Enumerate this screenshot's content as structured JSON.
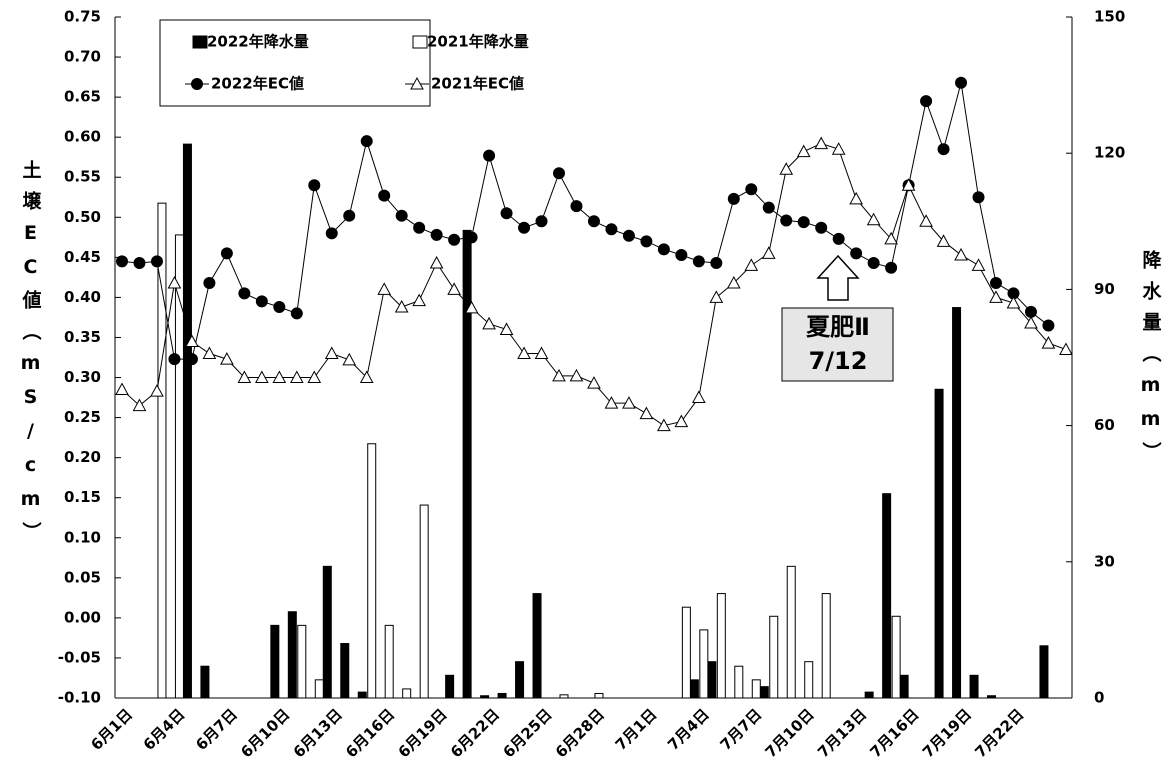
{
  "chart_data": {
    "type": "combo",
    "y_label": "土壌EC値（mS/cm）",
    "y2_label": "降水量（mm）",
    "categories": [
      "6月1日",
      null,
      null,
      "6月4日",
      null,
      null,
      "6月7日",
      null,
      null,
      "6月10日",
      null,
      null,
      "6月13日",
      null,
      null,
      "6月16日",
      null,
      null,
      "6月19日",
      null,
      null,
      "6月22日",
      null,
      null,
      "6月25日",
      null,
      null,
      "6月28日",
      null,
      null,
      "7月1日",
      null,
      null,
      "7月4日",
      null,
      null,
      "7月7日",
      null,
      null,
      "7月10日",
      null,
      null,
      "7月13日",
      null,
      null,
      "7月16日",
      null,
      null,
      "7月19日",
      null,
      null,
      "7月22日",
      null,
      null,
      null
    ],
    "ylim": [
      -0.1,
      0.75
    ],
    "yticks": [
      {
        "value": -0.1,
        "label": "-0.10"
      },
      -0.05,
      {
        "value": 0.0,
        "label": "0.00"
      },
      0.05,
      {
        "value": 0.1,
        "label": "0.10"
      },
      0.15,
      {
        "value": 0.2,
        "label": "0.20"
      },
      0.25,
      {
        "value": 0.3,
        "label": "0.30"
      },
      0.35,
      {
        "value": 0.4,
        "label": "0.40"
      },
      0.45,
      {
        "value": 0.5,
        "label": "0.50"
      },
      0.55,
      {
        "value": 0.6,
        "label": "0.60"
      },
      0.65,
      {
        "value": 0.7,
        "label": "0.70"
      },
      0.75
    ],
    "y2lim": [
      0,
      150
    ],
    "y2ticks": [
      0,
      30,
      60,
      90,
      120,
      150
    ],
    "series": [
      {
        "name": "2022年降水量",
        "type": "bar",
        "axis": "y2",
        "color": "#000000",
        "values": [
          0,
          0,
          0,
          122,
          7,
          0,
          0,
          0,
          16,
          19,
          0,
          29,
          12,
          1.3,
          0,
          0,
          0,
          0,
          5,
          103,
          0.5,
          1,
          8,
          23,
          0,
          0,
          0,
          0,
          0,
          0,
          0,
          0,
          4,
          8,
          0,
          0,
          2.5,
          0,
          0,
          0,
          0,
          0,
          1.3,
          45,
          5,
          0,
          68,
          86,
          5,
          0.5,
          0,
          0,
          11.5,
          0,
          0
        ]
      },
      {
        "name": "2021年降水量",
        "type": "bar",
        "axis": "y2",
        "color": "#ffffff",
        "values": [
          0,
          0,
          109,
          102,
          0,
          0,
          0,
          0,
          0,
          0,
          16,
          4,
          0,
          0,
          56,
          16,
          2,
          42.5,
          0,
          0,
          0,
          0,
          0,
          0,
          0,
          0.7,
          0,
          1,
          0,
          0,
          0,
          0,
          20,
          15,
          23,
          7,
          4,
          18,
          29,
          8,
          23,
          0,
          0,
          0,
          18,
          0,
          0,
          0,
          0,
          0,
          0,
          0,
          0,
          0,
          0
        ]
      },
      {
        "name": "2022年EC値",
        "type": "line",
        "marker": "circle",
        "color": "#000000",
        "values": [
          0.445,
          0.443,
          0.445,
          0.323,
          0.323,
          0.418,
          0.455,
          0.405,
          0.395,
          0.388,
          0.38,
          0.54,
          0.48,
          0.502,
          0.595,
          0.527,
          0.502,
          0.487,
          0.478,
          0.472,
          0.475,
          0.577,
          0.505,
          0.487,
          0.495,
          0.555,
          0.514,
          0.495,
          0.485,
          0.477,
          0.47,
          0.46,
          0.453,
          0.445,
          0.443,
          0.523,
          0.535,
          0.512,
          0.496,
          0.494,
          0.487,
          0.473,
          0.455,
          0.443,
          0.437,
          0.54,
          0.645,
          0.585,
          0.668,
          0.525,
          0.418,
          0.405,
          0.382,
          0.365,
          null
        ]
      },
      {
        "name": "2021年EC値",
        "type": "line",
        "marker": "triangle",
        "color": "#ffffff",
        "values": [
          0.285,
          0.265,
          0.283,
          0.418,
          0.345,
          0.33,
          0.323,
          0.3,
          0.3,
          0.3,
          0.3,
          0.3,
          0.33,
          0.322,
          0.3,
          0.41,
          0.388,
          0.396,
          0.443,
          0.41,
          0.387,
          0.367,
          0.36,
          0.33,
          0.33,
          0.302,
          0.302,
          0.293,
          0.268,
          0.268,
          0.255,
          0.24,
          0.245,
          0.275,
          0.4,
          0.418,
          0.44,
          0.455,
          0.56,
          0.582,
          0.592,
          0.585,
          0.523,
          0.497,
          0.473,
          0.54,
          0.495,
          0.47,
          0.453,
          0.44,
          0.4,
          0.393,
          0.368,
          0.343,
          0.335
        ]
      }
    ],
    "annotation": [
      "夏肥Ⅱ",
      "7/12"
    ]
  }
}
